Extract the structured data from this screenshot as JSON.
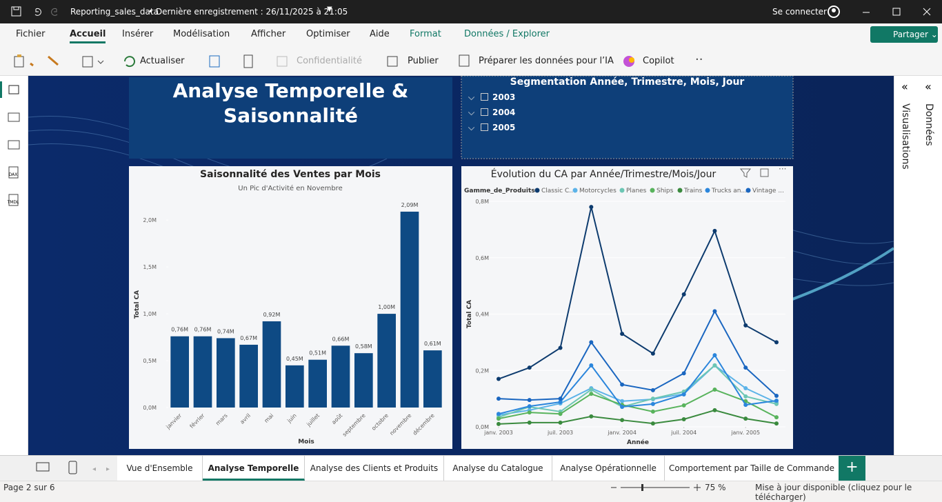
{
  "titlebar": {
    "file": "Reporting_sales_data",
    "saved": "• Dernière enregistrement : 26/11/2025 à 21:05",
    "signin": "Se connecter"
  },
  "menu": [
    "Fichier",
    "Accueil",
    "Insérer",
    "Modélisation",
    "Afficher",
    "Optimiser",
    "Aide",
    "Format",
    "Données / Explorer"
  ],
  "share": "Partager",
  "toolbar": [
    "Actualiser",
    "Confidentialité",
    "Publier",
    "Préparer les données pour l’IA",
    "Copilot"
  ],
  "rail": [
    "DAX",
    "TMDL"
  ],
  "panes": [
    "Visualisations",
    "Données"
  ],
  "report_title": "Analyse Temporelle & Saisonnalité",
  "slicer": {
    "title": "Segmentation Année, Trimestre, Mois, Jour",
    "items": [
      "2003",
      "2004",
      "2005"
    ]
  },
  "chart_data": [
    {
      "type": "bar",
      "title": "Saisonnalité des Ventes par Mois",
      "subtitle": "Un Pic d'Activité en Novembre",
      "x_label": "Mois",
      "y_label": "Total CA",
      "color": "#0e4a84",
      "categories": [
        "janvier",
        "février",
        "mars",
        "avril",
        "mai",
        "juin",
        "juillet",
        "août",
        "septembre",
        "octobre",
        "novembre",
        "décembre"
      ],
      "values": [
        760000,
        760000,
        740000,
        670000,
        920000,
        450000,
        510000,
        660000,
        580000,
        1000000,
        2090000,
        610000
      ],
      "value_labels": [
        "0,76M",
        "0,76M",
        "0,74M",
        "0,67M",
        "0,92M",
        "0,45M",
        "0,51M",
        "0,66M",
        "0,58M",
        "1,00M",
        "2,09M",
        "0,61M"
      ],
      "ylim": [
        0,
        2200000
      ],
      "yticks": [
        {
          "value": 0,
          "label": "0,0M"
        },
        {
          "value": 500000,
          "label": "0,5M"
        },
        {
          "value": 1000000,
          "label": "1,0M"
        },
        {
          "value": 1500000,
          "label": "1,5M"
        },
        {
          "value": 2000000,
          "label": "2,0M"
        }
      ]
    },
    {
      "type": "line",
      "title": "Évolution du CA par Année/Trimestre/Mois/Jour",
      "legend_title": "Gamme_de_Produits",
      "x_label": "Année",
      "y_label": "Total CA",
      "x": [
        "2003-01",
        "2003-04",
        "2003-07",
        "2003-10",
        "2004-01",
        "2004-04",
        "2004-07",
        "2004-10",
        "2005-01",
        "2005-04"
      ],
      "xticks": [
        {
          "value": "2003-01",
          "label": "janv. 2003"
        },
        {
          "value": "2003-07",
          "label": "juil. 2003"
        },
        {
          "value": "2004-01",
          "label": "janv. 2004"
        },
        {
          "value": "2004-07",
          "label": "juil. 2004"
        },
        {
          "value": "2005-01",
          "label": "janv. 2005"
        }
      ],
      "ylim": [
        0,
        800000
      ],
      "yticks": [
        {
          "value": 0,
          "label": "0,0M"
        },
        {
          "value": 200000,
          "label": "0,2M"
        },
        {
          "value": 400000,
          "label": "0,4M"
        },
        {
          "value": 600000,
          "label": "0,6M"
        },
        {
          "value": 800000,
          "label": "0,8M"
        }
      ],
      "series": [
        {
          "name": "Classic C...",
          "color": "#0d3b6e",
          "values": [
            170000,
            210000,
            280000,
            780000,
            330000,
            260000,
            470000,
            695000,
            360000,
            300000
          ]
        },
        {
          "name": "Motorcycles",
          "color": "#5cb3e8",
          "values": [
            42000,
            59000,
            83000,
            137000,
            91000,
            98000,
            117000,
            218000,
            137000,
            86000
          ]
        },
        {
          "name": "Planes",
          "color": "#6cc6b4",
          "values": [
            34000,
            71000,
            54000,
            132000,
            71000,
            100000,
            125000,
            218000,
            108000,
            81000
          ]
        },
        {
          "name": "Ships",
          "color": "#58b35c",
          "values": [
            29000,
            51000,
            46000,
            117000,
            78000,
            54000,
            76000,
            132000,
            91000,
            34000
          ]
        },
        {
          "name": "Trains",
          "color": "#3a8a3e",
          "values": [
            10000,
            15000,
            15000,
            37000,
            24000,
            12000,
            27000,
            59000,
            29000,
            12000
          ]
        },
        {
          "name": "Trucks an...",
          "color": "#2b86dc",
          "values": [
            46000,
            73000,
            88000,
            218000,
            71000,
            81000,
            115000,
            254000,
            78000,
            93000
          ]
        },
        {
          "name": "Vintage ...",
          "color": "#1a66c0",
          "values": [
            100000,
            95000,
            100000,
            300000,
            150000,
            130000,
            190000,
            410000,
            210000,
            110000
          ]
        }
      ]
    }
  ],
  "tabs": [
    "Vue d'Ensemble",
    "Analyse Temporelle",
    "Analyse des Clients et Produits",
    "Analyse du Catalogue",
    "Analyse Opérationnelle",
    "Comportement par Taille de Commande"
  ],
  "active_tab": 1,
  "status": {
    "page": "Page 2 sur 6",
    "zoom": "75 %",
    "update": "Mise à jour disponible (cliquez pour le télécharger)"
  }
}
